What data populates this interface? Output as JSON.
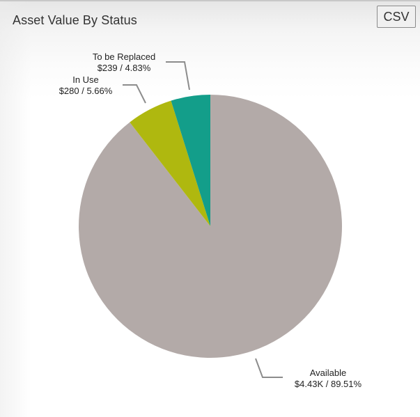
{
  "header": {
    "title": "Asset Value By Status",
    "csv_label": "CSV"
  },
  "chart_data": {
    "type": "pie",
    "title": "Asset Value By Status",
    "start_angle": "12 o'clock, clockwise",
    "slices": [
      {
        "label": "Available",
        "value": 4430,
        "value_text": "$4.43K",
        "percent": 89.51,
        "percent_text": "89.51%",
        "color": "#b3aaa8"
      },
      {
        "label": "In Use",
        "value": 280,
        "value_text": "$280",
        "percent": 5.66,
        "percent_text": "5.66%",
        "color": "#afb80f"
      },
      {
        "label": "To be Replaced",
        "value": 239,
        "value_text": "$239",
        "percent": 4.83,
        "percent_text": "4.83%",
        "color": "#139e8a"
      }
    ],
    "labels": [
      {
        "name": "Available",
        "line2": "$4.43K / 89.51%"
      },
      {
        "name": "In Use",
        "line2": "$280 / 5.66%"
      },
      {
        "name": "To be Replaced",
        "line2": "$239 / 4.83%"
      }
    ],
    "legend": "none (data labels with leader lines)"
  }
}
